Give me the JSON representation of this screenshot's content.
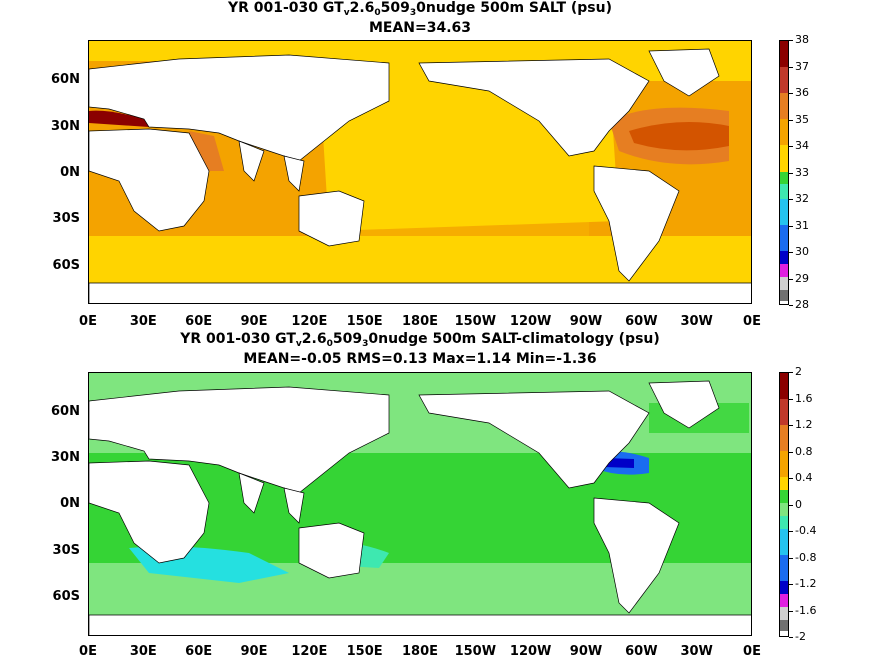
{
  "panel1": {
    "title_prefix": "YR 001-030 GT",
    "title_sub1": "v",
    "title_mid1": "2.6",
    "title_sub2": "0",
    "title_mid2": "509",
    "title_sub3": "3",
    "title_suffix": "0nudge 500m SALT (psu)",
    "stats": "MEAN=34.63",
    "colorbar": [
      "38",
      "37",
      "36",
      "35",
      "34",
      "33",
      "32",
      "31",
      "30",
      "29",
      "28"
    ],
    "colors": [
      "#8b0000",
      "#c0392b",
      "#e67e22",
      "#f4a300",
      "#ffd400",
      "#35d435",
      "#3ee8b0",
      "#25c4f0",
      "#1a6cf0",
      "#0000c8",
      "#e020e0",
      "#d0d0d0",
      "#707070"
    ]
  },
  "panel2": {
    "title_prefix": "YR 001-030 GT",
    "title_sub1": "v",
    "title_mid1": "2.6",
    "title_sub2": "0",
    "title_mid2": "509",
    "title_sub3": "3",
    "title_suffix": "0nudge 500m SALT-climatology (psu)",
    "stats": "MEAN=-0.05   RMS=0.13   Max=1.14   Min=-1.36",
    "colorbar": [
      "2",
      "1.6",
      "1.2",
      "0.8",
      "0.4",
      "0",
      "-0.4",
      "-0.8",
      "-1.2",
      "-1.6",
      "-2"
    ]
  },
  "lat_labels": [
    "60N",
    "30N",
    "0N",
    "30S",
    "60S"
  ],
  "lon_labels": [
    "0E",
    "30E",
    "60E",
    "90E",
    "120E",
    "150E",
    "180E",
    "150W",
    "120W",
    "90W",
    "60W",
    "30W",
    "0E"
  ]
}
